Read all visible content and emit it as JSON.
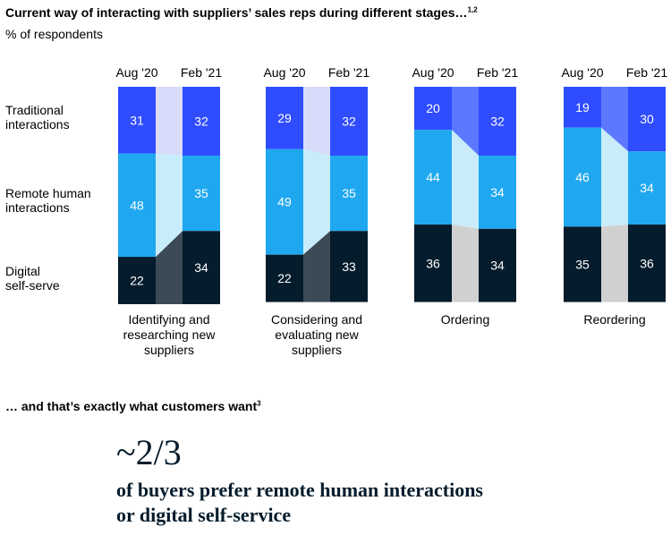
{
  "title": "Current way of interacting with suppliers’ sales reps during different stages…",
  "title_sup": "1,2",
  "subtitle": "% of respondents",
  "section2": {
    "text": "… and that’s exactly what customers want",
    "sup": "3"
  },
  "callout": {
    "stat": "~2/3",
    "line1": "of buyers prefer remote human interactions",
    "line2": "or digital self-service"
  },
  "chart_data": {
    "type": "bar",
    "stacked": true,
    "periods": [
      "Aug '20",
      "Feb '21"
    ],
    "segment_labels": [
      "Traditional\ninteractions",
      "Remote human\ninteractions",
      "Digital\nself-serve"
    ],
    "series": [
      {
        "name": "Traditional interactions",
        "color": "#2f4cff",
        "connector": "#d7dcfa"
      },
      {
        "name": "Remote human interactions",
        "color": "#1fa8f0",
        "connector": "#c9ecfb"
      },
      {
        "name": "Digital self-serve",
        "color": "#051c2c",
        "connector": "#3c4a55"
      }
    ],
    "groups": [
      {
        "label": "Identifying and\nresearching new\nsuppliers",
        "values": [
          [
            31,
            48,
            22
          ],
          [
            32,
            35,
            34
          ]
        ]
      },
      {
        "label": "Considering and\nevaluating new\nsuppliers",
        "values": [
          [
            29,
            49,
            22
          ],
          [
            32,
            35,
            33
          ]
        ]
      },
      {
        "label": "Ordering",
        "values": [
          [
            20,
            44,
            36
          ],
          [
            32,
            34,
            34
          ]
        ]
      },
      {
        "label": "Reordering",
        "values": [
          [
            19,
            46,
            35
          ],
          [
            30,
            34,
            36
          ]
        ]
      }
    ],
    "connector_alt": {
      "traditional": "#5b78ff",
      "remote": "#c9ecfb",
      "digital": "#d0d0d0"
    },
    "ylim": [
      0,
      101
    ]
  }
}
